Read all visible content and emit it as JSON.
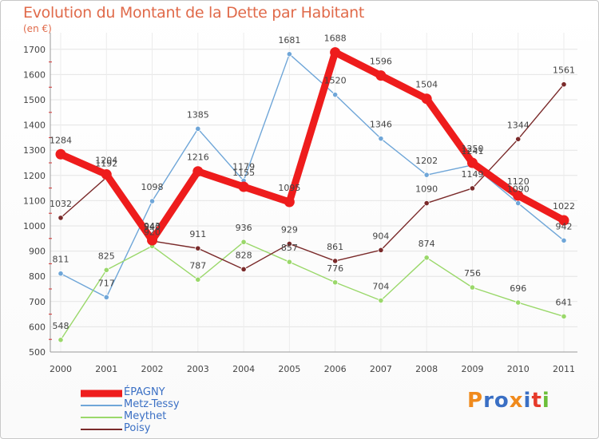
{
  "header": {
    "title": "Evolution du Montant de la Dette par Habitant",
    "subtitle": "(en €)"
  },
  "brand": {
    "letters": [
      "P",
      "r",
      "o",
      "x",
      "i",
      "t",
      "i"
    ],
    "colors": [
      "#f08a1c",
      "#3a6fc4",
      "#3a6fc4",
      "#f08a1c",
      "#3a6fc4",
      "#e63a2a",
      "#6bbf3a"
    ]
  },
  "chart_data": {
    "type": "line",
    "title": "Evolution du Montant de la Dette par Habitant",
    "subtitle": "(en €)",
    "xlabel": "",
    "ylabel": "",
    "categories": [
      "2000",
      "2001",
      "2002",
      "2003",
      "2004",
      "2005",
      "2006",
      "2007",
      "2008",
      "2009",
      "2010",
      "2011"
    ],
    "ylim": [
      500,
      1750
    ],
    "yticks": [
      "500",
      "600",
      "700",
      "800",
      "900",
      "1000",
      "1100",
      "1200",
      "1300",
      "1400",
      "1500",
      "1600",
      "1700"
    ],
    "grid": true,
    "legend_position": "bottom-left",
    "series": [
      {
        "name": "ÉPAGNY",
        "color": "#ee1c1c",
        "values": [
          1284,
          1204,
          943,
          1216,
          1155,
          1095,
          1688,
          1596,
          1504,
          1250,
          1120,
          1022
        ],
        "labels": [
          "1284",
          "1204",
          "943",
          "1216",
          "1155",
          "1095",
          "1688",
          "1596",
          "1504",
          "1250",
          "1120",
          "1022"
        ]
      },
      {
        "name": "Metz-Tessy",
        "color": "#6fa6d8",
        "values": [
          811,
          717,
          1098,
          1385,
          1179,
          1681,
          1520,
          1346,
          1202,
          1241,
          1090,
          942
        ],
        "labels": [
          "811",
          "717",
          "1098",
          "1385",
          "1179",
          "1681",
          "1520",
          "1346",
          "1202",
          "1241",
          "1090",
          "942"
        ]
      },
      {
        "name": "Meythet",
        "color": "#9ad86a",
        "values": [
          548,
          825,
          920,
          787,
          936,
          857,
          776,
          704,
          874,
          756,
          696,
          641
        ],
        "labels": [
          "548",
          "825",
          "920",
          "787",
          "936",
          "857",
          "776",
          "704",
          "874",
          "756",
          "696",
          "641"
        ]
      },
      {
        "name": "Poisy",
        "color": "#7a2a2a",
        "values": [
          1032,
          1192,
          940,
          911,
          828,
          929,
          861,
          904,
          1090,
          1149,
          1344,
          1561
        ],
        "labels": [
          "1032",
          "1192",
          "940",
          "911",
          "828",
          "929",
          "861",
          "904",
          "1090",
          "1149",
          "1344",
          "1561"
        ]
      }
    ]
  }
}
